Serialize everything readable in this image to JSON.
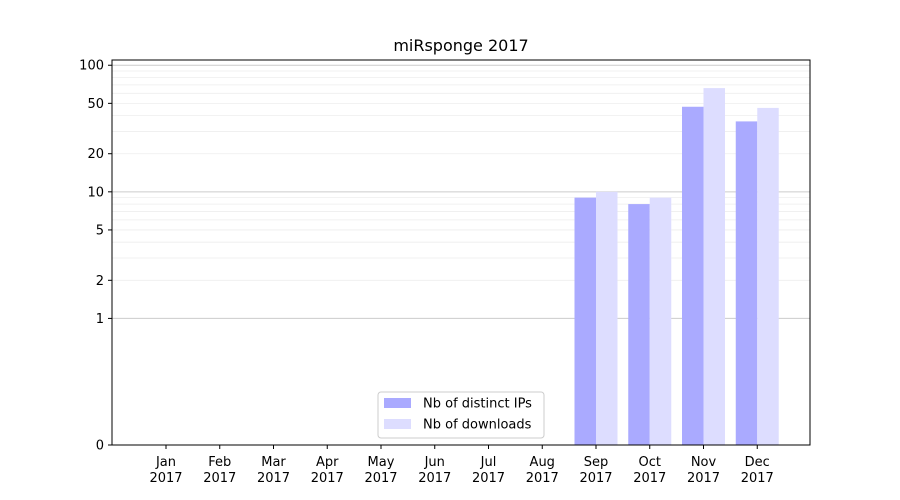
{
  "chart_data": {
    "type": "bar",
    "title": "miRsponge 2017",
    "xlabel": "",
    "ylabel": "",
    "categories": [
      {
        "month": "Jan",
        "year": "2017"
      },
      {
        "month": "Feb",
        "year": "2017"
      },
      {
        "month": "Mar",
        "year": "2017"
      },
      {
        "month": "Apr",
        "year": "2017"
      },
      {
        "month": "May",
        "year": "2017"
      },
      {
        "month": "Jun",
        "year": "2017"
      },
      {
        "month": "Jul",
        "year": "2017"
      },
      {
        "month": "Aug",
        "year": "2017"
      },
      {
        "month": "Sep",
        "year": "2017"
      },
      {
        "month": "Oct",
        "year": "2017"
      },
      {
        "month": "Nov",
        "year": "2017"
      },
      {
        "month": "Dec",
        "year": "2017"
      }
    ],
    "series": [
      {
        "name": "Nb of distinct IPs",
        "color": "#aaaaff",
        "values": [
          0,
          0,
          0,
          0,
          0,
          0,
          0,
          0,
          9,
          8,
          47,
          36
        ]
      },
      {
        "name": "Nb of downloads",
        "color": "#ddddff",
        "values": [
          0,
          0,
          0,
          0,
          0,
          0,
          0,
          0,
          10,
          9,
          66,
          46
        ]
      }
    ],
    "yscale": "symlog",
    "ylim": [
      0,
      110
    ],
    "yticks": [
      {
        "value": 0,
        "label": "0"
      },
      {
        "value": 1,
        "label": "1"
      },
      {
        "value": 2,
        "label": "2"
      },
      {
        "value": 5,
        "label": "5"
      },
      {
        "value": 10,
        "label": "10"
      },
      {
        "value": 20,
        "label": "20"
      },
      {
        "value": 50,
        "label": "50"
      },
      {
        "value": 100,
        "label": "100"
      }
    ],
    "grid": true,
    "legend_position": "bottom-center"
  }
}
